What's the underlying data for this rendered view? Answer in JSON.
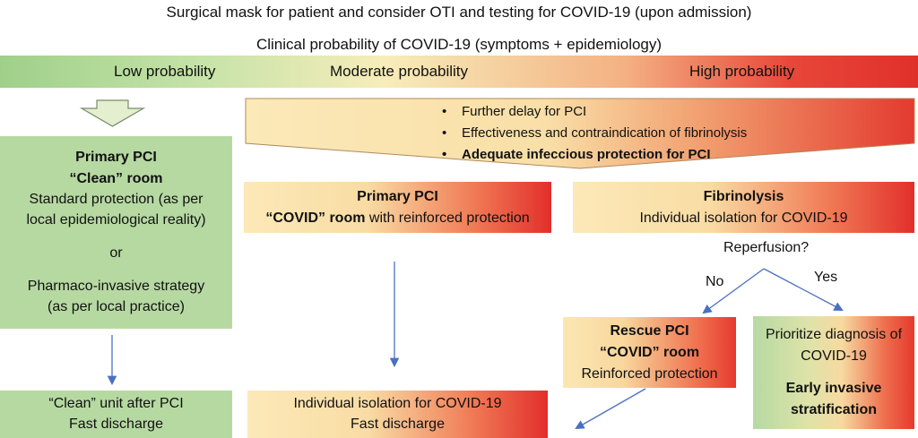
{
  "header": {
    "title": "Surgical mask for patient and consider OTI and testing for COVID-19 (upon admission)",
    "subtitle": "Clinical probability of COVID-19 (symptoms + epidemiology)"
  },
  "probability": {
    "low": "Low probability",
    "moderate": "Moderate probability",
    "high": "High probability"
  },
  "considerations": {
    "items": [
      "Further delay for PCI",
      "Effectiveness and contraindication of fibrinolysis",
      "Adequate infeccious protection for PCI"
    ]
  },
  "low_path": {
    "line1": "Primary PCI",
    "line2": "“Clean” room",
    "line3": "Standard protection (as per",
    "line4": "local epidemiological reality)",
    "or": "or",
    "line5": "Pharmaco-invasive strategy",
    "line6": "(as per local practice)",
    "outcome_line1": "“Clean” unit after PCI",
    "outcome_line2": "Fast discharge"
  },
  "moderate_path": {
    "line1": "Primary PCI",
    "line2_bold": "“COVID” room",
    "line2_rest": " with reinforced protection",
    "outcome_line1": "Individual isolation for COVID-19",
    "outcome_line2": "Fast discharge"
  },
  "high_path": {
    "line1": "Fibrinolysis",
    "line2": "Individual isolation for COVID-19",
    "question": "Reperfusion?",
    "no": "No",
    "yes": "Yes",
    "rescue_line1": "Rescue PCI",
    "rescue_line2": "“COVID” room",
    "rescue_line3": "Reinforced protection",
    "prioritize_line1": "Prioritize diagnosis of",
    "prioritize_line2": "COVID-19",
    "prioritize_line3": "Early invasive",
    "prioritize_line4": "stratification"
  },
  "colors": {
    "green": "#b6d9a2",
    "red": "#e22f2b",
    "yellow": "#fce9b8",
    "arrow": "#4a6fc1"
  }
}
